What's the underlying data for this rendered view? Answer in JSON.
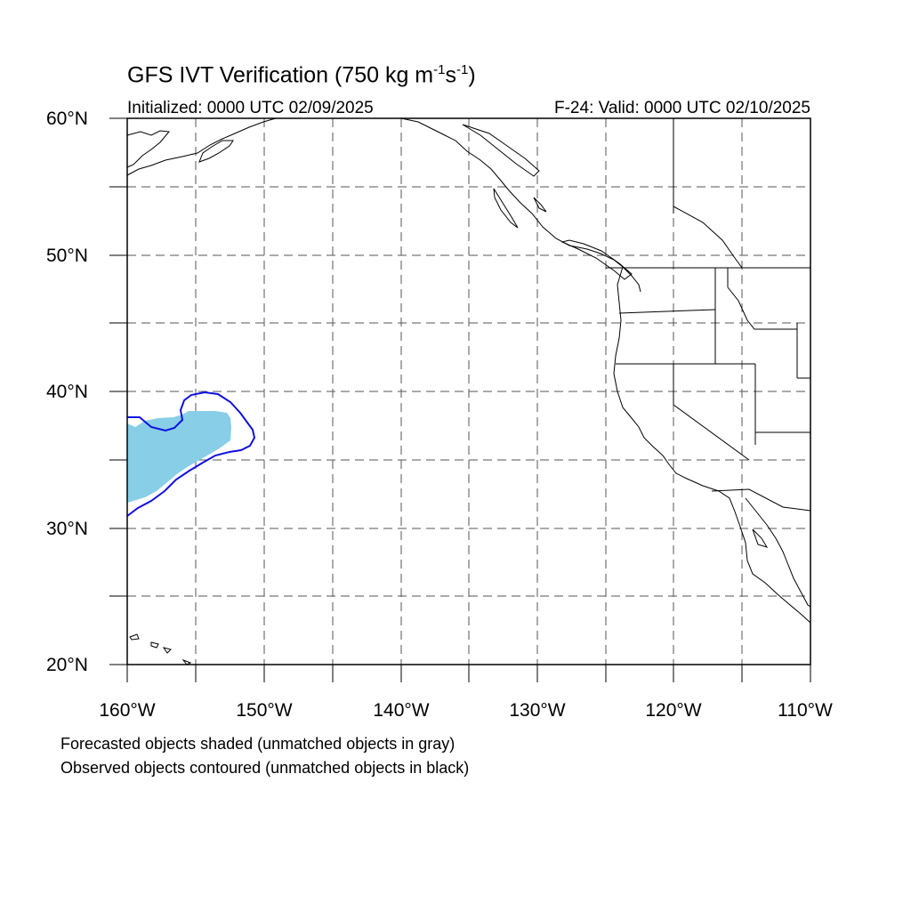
{
  "title": {
    "main_prefix": "GFS IVT Verification (750 kg m",
    "exp1": "-1",
    "mid": "s",
    "exp2": "-1",
    "suffix": ")"
  },
  "initialized": "Initialized: 0000 UTC 02/09/2025",
  "valid": "F-24: Valid: 0000 UTC 02/10/2025",
  "lat_labels": [
    "60°N",
    "50°N",
    "40°N",
    "30°N",
    "20°N"
  ],
  "lon_labels": [
    "160°W",
    "150°W",
    "140°W",
    "130°W",
    "120°W",
    "110°W"
  ],
  "footnote_1": "Forecasted objects shaded (unmatched objects in gray)",
  "footnote_2": "Observed objects contoured (unmatched objects in black)",
  "colors": {
    "forecast_fill": "#87CEE6",
    "observed_contour": "#1010E0",
    "coast": "#000000",
    "grid": "#555555"
  }
}
